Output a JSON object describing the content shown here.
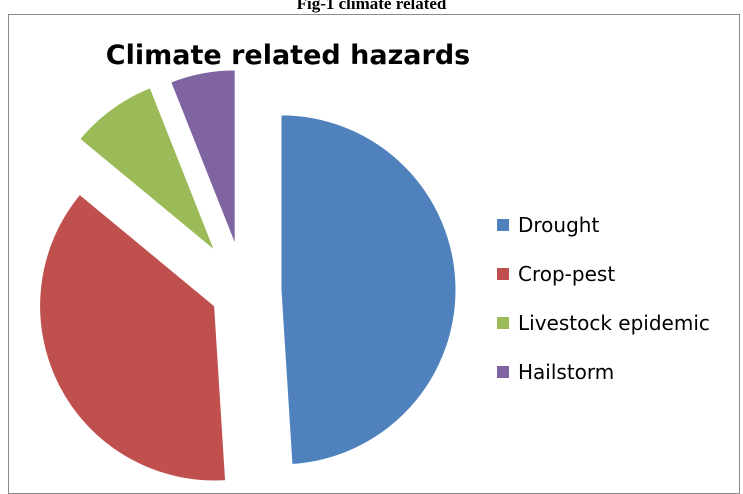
{
  "caption": "Fig-1 climate related",
  "chart_data": {
    "type": "pie",
    "title": "Climate related hazards",
    "legend_position": "right",
    "exploded": true,
    "slices": [
      {
        "label": "Drought",
        "value": 49,
        "color": "#4f81bd"
      },
      {
        "label": "Crop-pest",
        "value": 37,
        "color": "#c0504d"
      },
      {
        "label": "Livestock epidemic",
        "value": 8,
        "color": "#9bbb59"
      },
      {
        "label": "Hailstorm",
        "value": 6,
        "color": "#8064a2"
      }
    ]
  }
}
